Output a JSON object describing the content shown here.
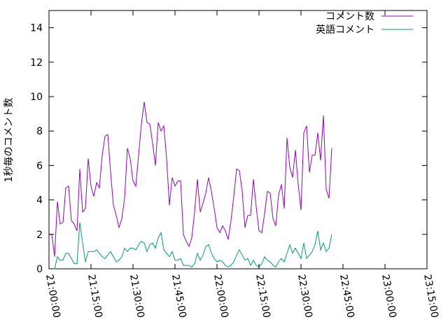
{
  "chart_data": {
    "type": "line",
    "title": "",
    "xlabel": "",
    "ylabel": "1秒毎のコメント数",
    "xlim": [
      "21:00:00",
      "23:15:00"
    ],
    "ylim": [
      0,
      15
    ],
    "x_ticks": [
      "21:00:00",
      "21:15:00",
      "21:30:00",
      "21:45:00",
      "22:00:00",
      "22:15:00",
      "22:30:00",
      "22:45:00",
      "23:00:00",
      "23:15:00"
    ],
    "y_ticks": [
      "0",
      "2",
      "4",
      "6",
      "8",
      "10",
      "12",
      "14"
    ],
    "grid": false,
    "legend_position": "top-right",
    "sample_interval_seconds": 60,
    "x_start": "21:00:00",
    "series": [
      {
        "name": "コメント数",
        "color": "#9400d3",
        "values": [
          2.0,
          2.0,
          0.7,
          3.9,
          2.6,
          2.7,
          4.7,
          4.8,
          2.8,
          2.6,
          2.2,
          5.8,
          3.3,
          3.5,
          6.4,
          4.8,
          4.2,
          5.0,
          4.7,
          6.6,
          7.7,
          7.8,
          5.6,
          3.7,
          3.1,
          2.4,
          2.9,
          4.1,
          7.0,
          6.4,
          5.1,
          4.8,
          6.6,
          8.4,
          9.7,
          8.5,
          8.4,
          7.3,
          6.0,
          8.5,
          8.0,
          8.3,
          6.4,
          3.7,
          5.3,
          4.8,
          5.1,
          5.1,
          2.0,
          1.6,
          1.3,
          1.8,
          3.3,
          5.2,
          3.3,
          3.8,
          4.4,
          5.3,
          4.5,
          3.5,
          2.4,
          2.1,
          2.5,
          2.2,
          1.7,
          2.8,
          4.2,
          5.8,
          5.7,
          4.5,
          2.4,
          3.1,
          3.1,
          5.2,
          3.6,
          2.2,
          2.1,
          3.2,
          4.5,
          4.4,
          2.9,
          2.5,
          4.3,
          4.9,
          3.5,
          7.6,
          5.9,
          5.3,
          6.9,
          4.9,
          3.4,
          7.9,
          8.3,
          5.6,
          6.6,
          6.6,
          7.9,
          6.3,
          8.9,
          4.6,
          4.1,
          7.0
        ]
      },
      {
        "name": "英語コメント",
        "color": "#009e73",
        "values": [
          0.0,
          0.0,
          0.0,
          0.7,
          0.5,
          0.5,
          0.9,
          0.9,
          0.6,
          0.3,
          0.3,
          2.7,
          1.5,
          0.4,
          1.0,
          1.0,
          1.0,
          1.1,
          0.9,
          0.7,
          0.6,
          0.8,
          1.0,
          0.7,
          0.4,
          0.5,
          0.7,
          1.2,
          1.0,
          1.2,
          1.2,
          1.1,
          1.4,
          1.6,
          1.5,
          1.0,
          1.4,
          1.5,
          1.2,
          1.8,
          2.1,
          1.1,
          0.9,
          0.7,
          1.0,
          0.5,
          0.5,
          0.6,
          0.2,
          0.2,
          0.2,
          0.1,
          0.3,
          0.9,
          0.5,
          0.8,
          1.3,
          1.4,
          0.9,
          0.6,
          0.4,
          0.5,
          0.4,
          0.2,
          0.1,
          0.2,
          0.4,
          0.8,
          1.1,
          0.8,
          0.5,
          0.6,
          0.2,
          0.5,
          0.2,
          0.1,
          0.3,
          0.7,
          0.5,
          0.4,
          0.2,
          0.1,
          0.4,
          0.6,
          0.4,
          0.9,
          1.4,
          0.9,
          1.2,
          0.9,
          0.6,
          1.5,
          0.6,
          0.8,
          1.0,
          1.4,
          2.2,
          1.1,
          1.5,
          1.0,
          1.2,
          2.0
        ]
      }
    ]
  }
}
